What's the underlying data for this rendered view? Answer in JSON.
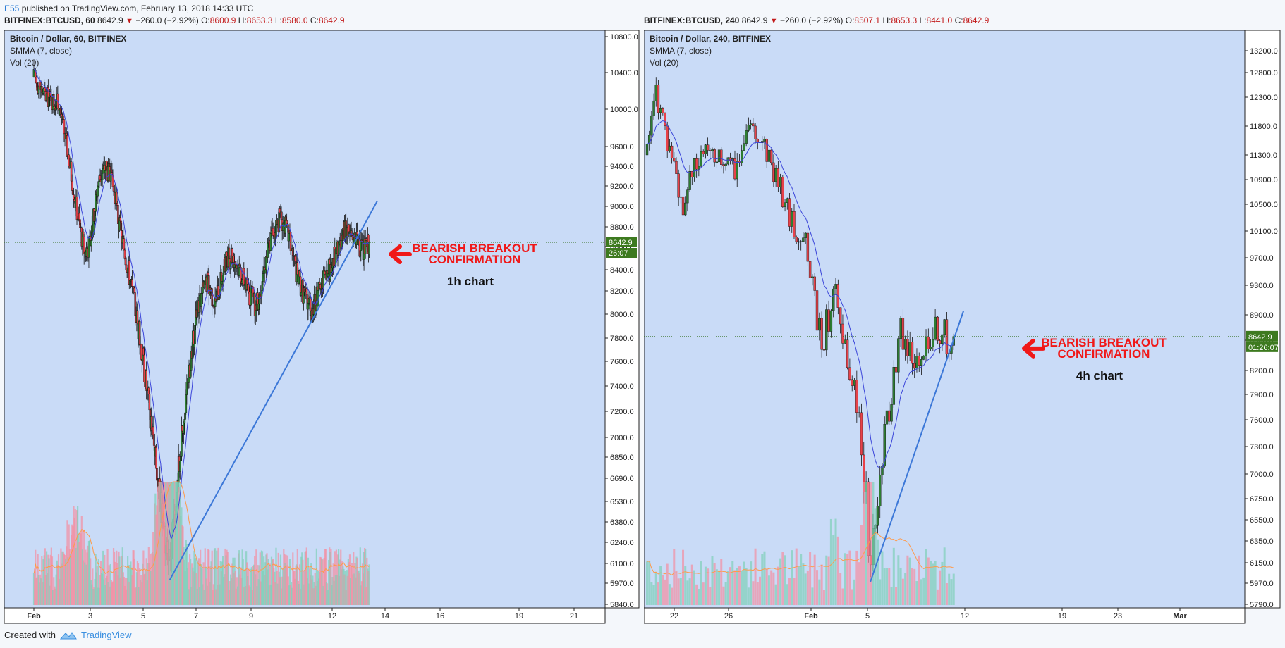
{
  "publisher": {
    "author": "E55",
    "text": " published on TradingView.com, February 13, 2018 14:33 UTC"
  },
  "footer": {
    "created_with": "Created with",
    "brand": "TradingView"
  },
  "colors": {
    "bg": "#c9dbf7",
    "up": "#2e7d32",
    "down": "#e8424a",
    "smma": "#3b45d9",
    "vol_ma": "#ff9a4a",
    "trendline": "#3c78d8",
    "annotation": "#f01818",
    "price_label": "#3d7a1f"
  },
  "panels": [
    {
      "header": {
        "symbol": "BITFINEX:BTCUSD, 60",
        "price": "8642.9",
        "change": "−260.0 (−2.92%)",
        "o_label": "O:",
        "o": "8600.9",
        "h_label": "H:",
        "h": "8653.3",
        "l_label": "L:",
        "l": "8580.0",
        "c_label": "C:",
        "c": "8642.9"
      },
      "legend": {
        "title": "Bitcoin / Dollar, 60, BITFINEX",
        "smma": "SMMA (7, close)",
        "vol": "Vol (20)"
      },
      "price_label": "8642.9",
      "countdown": "26:07",
      "annotation": {
        "line1": "BEARISH BREAKOUT",
        "line2": "CONFIRMATION",
        "sub": "1h chart"
      }
    },
    {
      "header": {
        "symbol": "BITFINEX:BTCUSD, 240",
        "price": "8642.9",
        "change": "−260.0 (−2.92%)",
        "o_label": "O:",
        "o": "8507.1",
        "h_label": "H:",
        "h": "8653.3",
        "l_label": "L:",
        "l": "8441.0",
        "c_label": "C:",
        "c": "8642.9"
      },
      "legend": {
        "title": "Bitcoin / Dollar, 240, BITFINEX",
        "smma": "SMMA (7, close)",
        "vol": "Vol (20)"
      },
      "price_label": "8642.9",
      "countdown": "01:26:07",
      "annotation": {
        "line1": "BEARISH BREAKOUT",
        "line2": "CONFIRMATION",
        "sub": "4h chart"
      }
    }
  ],
  "chart_data": [
    {
      "type": "candlestick",
      "title": "Bitcoin / Dollar, 60, BITFINEX",
      "y_ticks": [
        10800,
        10400,
        10000,
        9600,
        9400,
        9200,
        9000,
        8800,
        8600,
        8400,
        8200,
        8000,
        7800,
        7600,
        7400,
        7200,
        7000,
        6850,
        6690,
        6530,
        6380,
        6240,
        6100,
        5970,
        5840
      ],
      "x_ticks": [
        "Feb",
        "3",
        "5",
        "7",
        "9",
        "12",
        "14",
        "16",
        "19",
        "21"
      ],
      "price_series": [
        {
          "d": 1.0,
          "p": 10350
        },
        {
          "d": 1.4,
          "p": 10150
        },
        {
          "d": 1.9,
          "p": 10050
        },
        {
          "d": 2.2,
          "p": 9550
        },
        {
          "d": 2.5,
          "p": 9000
        },
        {
          "d": 2.8,
          "p": 8550
        },
        {
          "d": 3.0,
          "p": 8650
        },
        {
          "d": 3.3,
          "p": 9250
        },
        {
          "d": 3.6,
          "p": 9400
        },
        {
          "d": 3.9,
          "p": 9150
        },
        {
          "d": 4.1,
          "p": 8800
        },
        {
          "d": 4.4,
          "p": 8450
        },
        {
          "d": 4.7,
          "p": 8050
        },
        {
          "d": 5.0,
          "p": 7600
        },
        {
          "d": 5.3,
          "p": 7100
        },
        {
          "d": 5.6,
          "p": 6600
        },
        {
          "d": 5.85,
          "p": 6250
        },
        {
          "d": 6.0,
          "p": 6050
        },
        {
          "d": 6.3,
          "p": 6700
        },
        {
          "d": 6.6,
          "p": 7300
        },
        {
          "d": 6.9,
          "p": 7800
        },
        {
          "d": 7.1,
          "p": 8100
        },
        {
          "d": 7.4,
          "p": 8300
        },
        {
          "d": 7.7,
          "p": 8100
        },
        {
          "d": 8.0,
          "p": 8400
        },
        {
          "d": 8.3,
          "p": 8550
        },
        {
          "d": 8.6,
          "p": 8400
        },
        {
          "d": 8.9,
          "p": 8200
        },
        {
          "d": 9.2,
          "p": 8050
        },
        {
          "d": 9.5,
          "p": 8450
        },
        {
          "d": 9.8,
          "p": 8750
        },
        {
          "d": 10.1,
          "p": 8900
        },
        {
          "d": 10.4,
          "p": 8700
        },
        {
          "d": 10.7,
          "p": 8350
        },
        {
          "d": 11.0,
          "p": 8150
        },
        {
          "d": 11.3,
          "p": 8050
        },
        {
          "d": 11.6,
          "p": 8250
        },
        {
          "d": 11.9,
          "p": 8400
        },
        {
          "d": 12.2,
          "p": 8550
        },
        {
          "d": 12.5,
          "p": 8800
        },
        {
          "d": 12.8,
          "p": 8700
        },
        {
          "d": 13.1,
          "p": 8550
        },
        {
          "d": 13.4,
          "p": 8642.9
        }
      ],
      "last_price": 8642.9,
      "trendline": [
        {
          "d": 6.0,
          "p": 5990
        },
        {
          "d": 13.7,
          "p": 9050
        }
      ],
      "volume_peak_days": [
        5.8,
        6.0,
        6.1,
        2.5
      ]
    },
    {
      "type": "candlestick",
      "title": "Bitcoin / Dollar, 240, BITFINEX",
      "y_ticks": [
        13200,
        12800,
        12300,
        11800,
        11300,
        10900,
        10500,
        10100,
        9700,
        9300,
        8900,
        8600,
        8200,
        7900,
        7600,
        7300,
        7000,
        6750,
        6550,
        6350,
        6150,
        5970,
        5790
      ],
      "x_ticks": [
        "22",
        "26",
        "Feb",
        "5",
        "12",
        "19",
        "23",
        "Mar"
      ],
      "price_series": [
        {
          "d": 20.0,
          "p": 11300
        },
        {
          "d": 20.6,
          "p": 12400
        },
        {
          "d": 21.0,
          "p": 12100
        },
        {
          "d": 21.5,
          "p": 11400
        },
        {
          "d": 22.0,
          "p": 11000
        },
        {
          "d": 22.6,
          "p": 10400
        },
        {
          "d": 23.2,
          "p": 10900
        },
        {
          "d": 23.8,
          "p": 11200
        },
        {
          "d": 24.4,
          "p": 11500
        },
        {
          "d": 25.0,
          "p": 11100
        },
        {
          "d": 25.6,
          "p": 11300
        },
        {
          "d": 26.2,
          "p": 11000
        },
        {
          "d": 26.8,
          "p": 11300
        },
        {
          "d": 27.4,
          "p": 11600
        },
        {
          "d": 28.0,
          "p": 11800
        },
        {
          "d": 28.6,
          "p": 11500
        },
        {
          "d": 29.2,
          "p": 11100
        },
        {
          "d": 29.8,
          "p": 10800
        },
        {
          "d": 30.4,
          "p": 10300
        },
        {
          "d": 31.0,
          "p": 10100
        },
        {
          "d": 31.4,
          "p": 10150
        },
        {
          "d": 31.9,
          "p": 9500
        },
        {
          "d": 32.4,
          "p": 8900
        },
        {
          "d": 32.9,
          "p": 8600
        },
        {
          "d": 33.4,
          "p": 9000
        },
        {
          "d": 33.8,
          "p": 9200
        },
        {
          "d": 34.2,
          "p": 8800
        },
        {
          "d": 34.6,
          "p": 8400
        },
        {
          "d": 35.0,
          "p": 8000
        },
        {
          "d": 35.4,
          "p": 7500
        },
        {
          "d": 35.8,
          "p": 6900
        },
        {
          "d": 36.2,
          "p": 6200
        },
        {
          "d": 36.5,
          "p": 6350
        },
        {
          "d": 36.9,
          "p": 7000
        },
        {
          "d": 37.4,
          "p": 7600
        },
        {
          "d": 37.9,
          "p": 8200
        },
        {
          "d": 38.4,
          "p": 8700
        },
        {
          "d": 38.9,
          "p": 8500
        },
        {
          "d": 39.4,
          "p": 8300
        },
        {
          "d": 39.9,
          "p": 8200
        },
        {
          "d": 40.4,
          "p": 8550
        },
        {
          "d": 40.9,
          "p": 8800
        },
        {
          "d": 41.4,
          "p": 8700
        },
        {
          "d": 41.9,
          "p": 8550
        },
        {
          "d": 42.2,
          "p": 8642.9
        }
      ],
      "last_price": 8642.9,
      "trendline": [
        {
          "d": 36.2,
          "p": 5980
        },
        {
          "d": 42.9,
          "p": 8950
        }
      ],
      "volume_peak_days": [
        35.8,
        36.1,
        36.3,
        33.6
      ]
    }
  ]
}
